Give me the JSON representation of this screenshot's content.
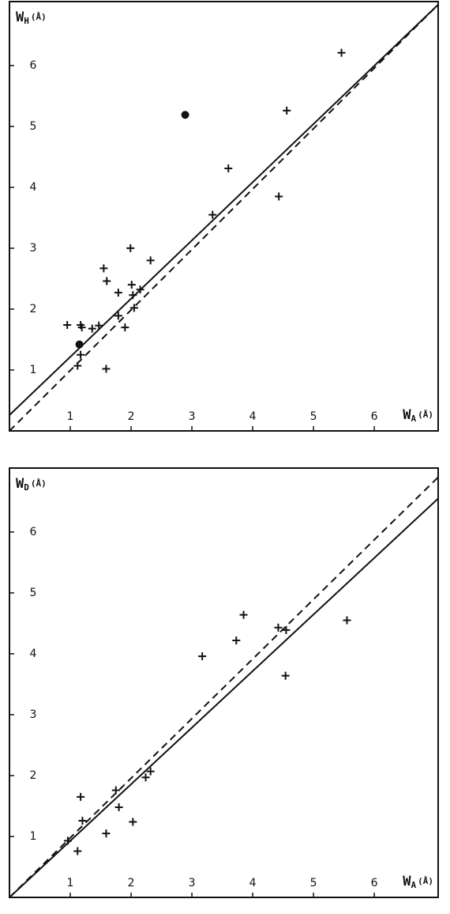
{
  "chart_data": [
    {
      "type": "scatter",
      "x_label": {
        "symbol": "W",
        "subscript": "A",
        "unit": "(Å)"
      },
      "y_label": {
        "symbol": "W",
        "subscript": "H",
        "unit": "(Å)"
      },
      "xlim": [
        0,
        7.05
      ],
      "ylim": [
        0,
        7.05
      ],
      "xticks": [
        1,
        2,
        3,
        4,
        5,
        6
      ],
      "yticks": [
        1,
        2,
        3,
        4,
        5,
        6
      ],
      "series": [
        {
          "marker": "plus",
          "color": "#111",
          "x": [
            5.46,
            4.56,
            3.6,
            4.43,
            3.34,
            1.99,
            2.32,
            1.55,
            1.6,
            1.79,
            2.01,
            2.03,
            2.15,
            2.05,
            1.79,
            1.9,
            0.95,
            1.17,
            1.19,
            1.36,
            1.47,
            1.17,
            1.12,
            1.59
          ],
          "y": [
            6.21,
            5.26,
            4.31,
            3.85,
            3.55,
            3.0,
            2.8,
            2.67,
            2.46,
            2.27,
            2.4,
            2.23,
            2.32,
            2.02,
            1.89,
            1.7,
            1.74,
            1.74,
            1.7,
            1.68,
            1.73,
            1.25,
            1.07,
            1.02
          ]
        },
        {
          "marker": "dot",
          "color": "#111",
          "x": [
            2.89,
            1.15
          ],
          "y": [
            5.19,
            1.42
          ]
        }
      ],
      "lines": [
        {
          "style": "solid",
          "color": "#111",
          "x": [
            0,
            7.05
          ],
          "y": [
            0.26,
            7.0
          ]
        },
        {
          "style": "dashed",
          "color": "#111",
          "x": [
            0,
            7.05
          ],
          "y": [
            0,
            7.0
          ]
        }
      ]
    },
    {
      "type": "scatter",
      "x_label": {
        "symbol": "W",
        "subscript": "A",
        "unit": "(Å)"
      },
      "y_label": {
        "symbol": "W",
        "subscript": "D",
        "unit": "(Å)"
      },
      "xlim": [
        0,
        7.05
      ],
      "ylim": [
        0,
        7.05
      ],
      "xticks": [
        1,
        2,
        3,
        4,
        5,
        6
      ],
      "yticks": [
        1,
        2,
        3,
        4,
        5,
        6
      ],
      "series": [
        {
          "marker": "plus",
          "color": "#111",
          "x": [
            5.55,
            3.85,
            3.73,
            4.42,
            4.55,
            4.54,
            3.17,
            2.32,
            2.24,
            1.17,
            1.75,
            1.2,
            1.8,
            1.59,
            2.03,
            0.96,
            1.12
          ],
          "y": [
            4.55,
            4.64,
            4.22,
            4.43,
            4.39,
            3.64,
            3.96,
            2.07,
            1.97,
            1.65,
            1.76,
            1.26,
            1.48,
            1.05,
            1.24,
            0.93,
            0.76
          ]
        }
      ],
      "lines": [
        {
          "style": "dashed",
          "color": "#111",
          "x": [
            0,
            7.05
          ],
          "y": [
            0,
            6.9
          ]
        },
        {
          "style": "solid",
          "color": "#111",
          "x": [
            0,
            7.05
          ],
          "y": [
            0,
            6.55
          ]
        }
      ]
    }
  ]
}
